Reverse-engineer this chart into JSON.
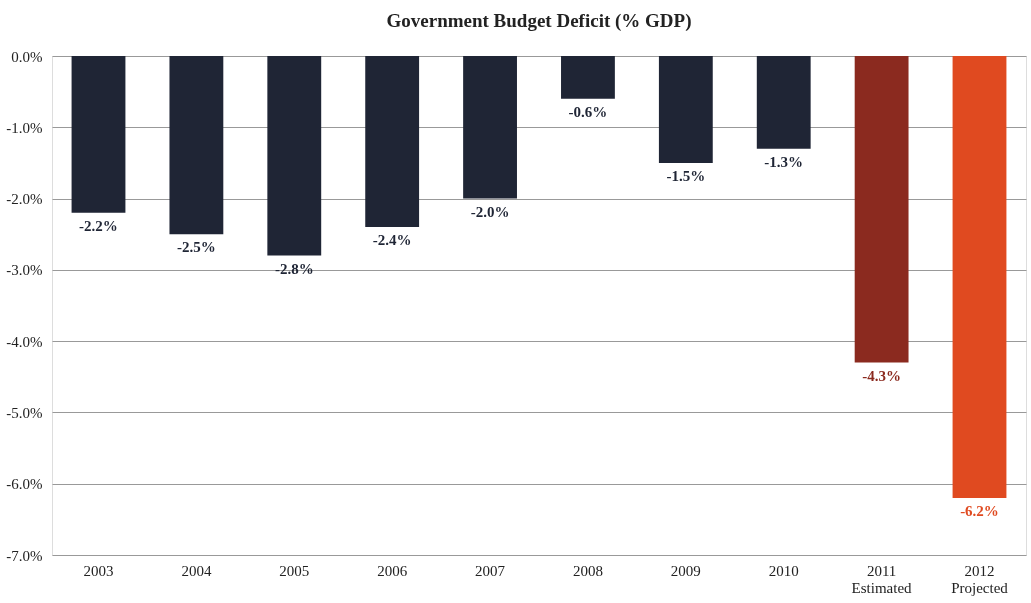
{
  "chart_data": {
    "type": "bar",
    "title": "Government Budget Deficit (% GDP)",
    "categories": [
      "2003",
      "2004",
      "2005",
      "2006",
      "2007",
      "2008",
      "2009",
      "2010",
      "2011\nEstimated",
      "2012\nProjected"
    ],
    "values": [
      -2.2,
      -2.5,
      -2.8,
      -2.4,
      -2.0,
      -0.6,
      -1.5,
      -1.3,
      -4.3,
      -6.2
    ],
    "colors": [
      "#1f2535",
      "#1f2535",
      "#1f2535",
      "#1f2535",
      "#1f2535",
      "#1f2535",
      "#1f2535",
      "#1f2535",
      "#8b2a1f",
      "#e04a20"
    ],
    "value_labels": [
      "-2.2%",
      "-2.5%",
      "-2.8%",
      "-2.4%",
      "-2.0%",
      "-0.6%",
      "-1.5%",
      "-1.3%",
      "-4.3%",
      "-6.2%"
    ],
    "ylim": [
      -7,
      0
    ],
    "yticks": [
      {
        "value": 0,
        "label": "0.0%"
      },
      {
        "value": -1,
        "label": "-1.0%"
      },
      {
        "value": -2,
        "label": "-2.0%"
      },
      {
        "value": -3,
        "label": "-3.0%"
      },
      {
        "value": -4,
        "label": "-4.0%"
      },
      {
        "value": -5,
        "label": "-5.0%"
      },
      {
        "value": -6,
        "label": "-6.0%"
      },
      {
        "value": -7,
        "label": "-7.0%"
      }
    ],
    "grid": "y",
    "legend": false
  }
}
